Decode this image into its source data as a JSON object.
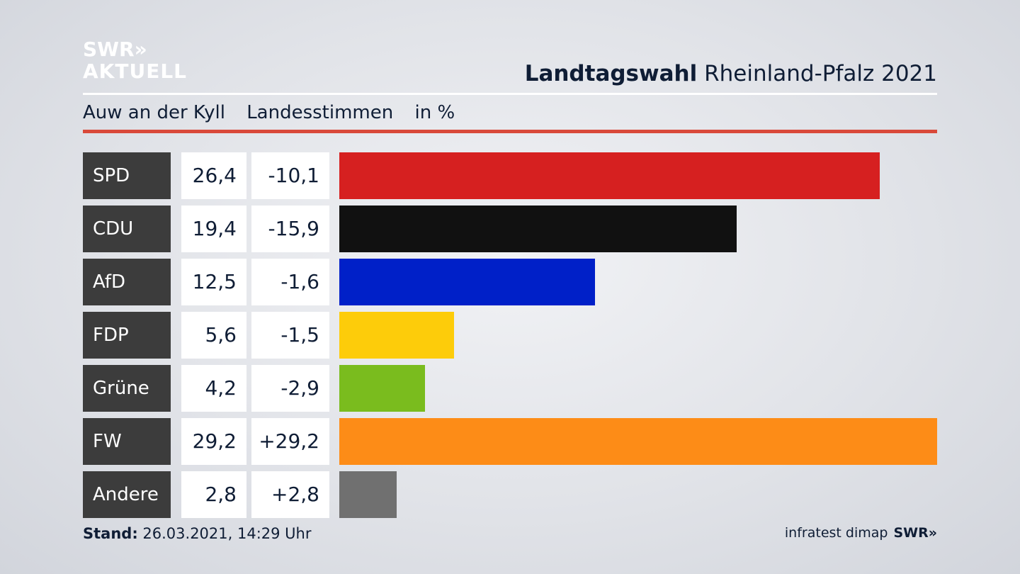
{
  "header": {
    "logo_line1": "SWR»",
    "logo_line2": "AKTUELL",
    "title_bold": "Landtagswahl",
    "title_rest": " Rheinland-Pfalz 2021"
  },
  "subtitle": {
    "place": "Auw an der Kyll",
    "vote_type": "Landesstimmen",
    "unit": "in %"
  },
  "chart_data": {
    "type": "bar",
    "categories": [
      "SPD",
      "CDU",
      "AfD",
      "FDP",
      "Grüne",
      "FW",
      "Andere"
    ],
    "values": [
      26.4,
      19.4,
      12.5,
      5.6,
      4.2,
      29.2,
      2.8
    ],
    "value_labels": [
      "26,4",
      "19,4",
      "12,5",
      "5,6",
      "4,2",
      "29,2",
      "2,8"
    ],
    "change_labels": [
      "-10,1",
      "-15,9",
      "-1,6",
      "-1,5",
      "-2,9",
      "+29,2",
      "+2,8"
    ],
    "changes": [
      -10.1,
      -15.9,
      -1.6,
      -1.5,
      -2.9,
      29.2,
      2.8
    ],
    "colors": [
      "#d62020",
      "#111111",
      "#0020c8",
      "#fdcc0a",
      "#7abc1e",
      "#fd8c17",
      "#707070"
    ],
    "title": "Landtagswahl Rheinland-Pfalz 2021",
    "xlim": [
      0,
      29.2
    ],
    "orientation": "horizontal",
    "grid": false
  },
  "footer": {
    "stand_label": "Stand:",
    "stand_value": " 26.03.2021, 14:29 Uhr",
    "source": "infratest dimap",
    "source_logo": "SWR»"
  }
}
